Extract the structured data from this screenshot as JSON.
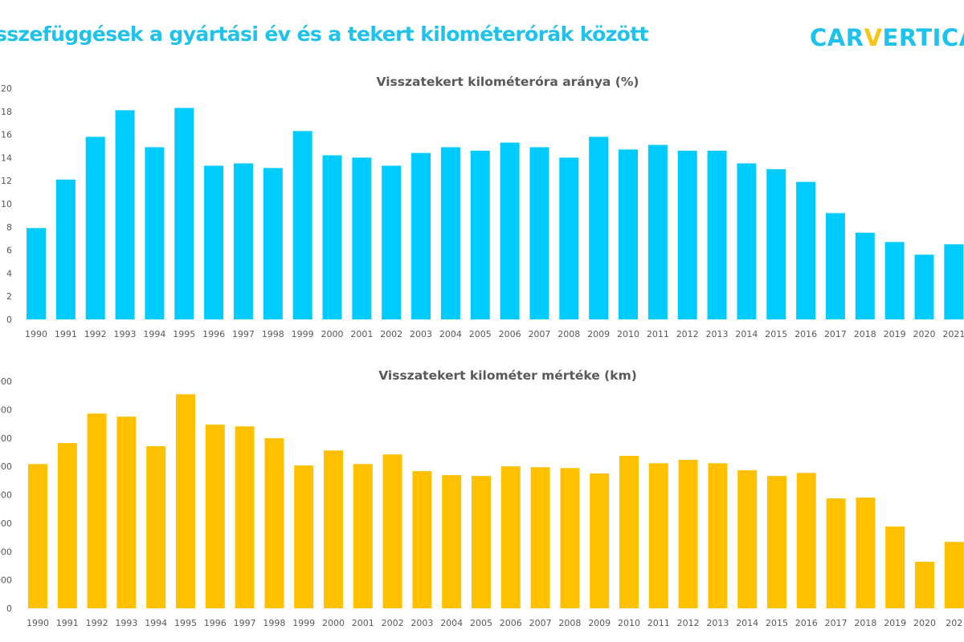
{
  "header": {
    "title": "sszefüggések a gyártási év és a tekert kilométerórák között",
    "logo_prefix": "CAR",
    "logo_v": "V",
    "logo_suffix": "ERTICA"
  },
  "colors": {
    "title": "#1fc2ea",
    "top_bars": "#00cbff",
    "bottom_bars": "#ffc000",
    "logo_accent": "#f5c518",
    "axis_text": "#595959"
  },
  "chart_data": [
    {
      "type": "bar",
      "title": "Visszatekert kilométeróra aránya (%)",
      "xlabel": "",
      "ylabel": "",
      "ylim": [
        0,
        20
      ],
      "yticks": [
        0,
        2,
        4,
        6,
        8,
        10,
        12,
        14,
        16,
        18,
        20
      ],
      "ytick_labels": [
        "0",
        "2",
        "4",
        "6",
        "8",
        "10",
        "12",
        "14",
        "16",
        "18",
        "20"
      ],
      "grid": false,
      "categories": [
        "1990",
        "1991",
        "1992",
        "1993",
        "1994",
        "1995",
        "1996",
        "1997",
        "1998",
        "1999",
        "2000",
        "2001",
        "2002",
        "2003",
        "2004",
        "2005",
        "2006",
        "2007",
        "2008",
        "2009",
        "2010",
        "2011",
        "2012",
        "2013",
        "2014",
        "2015",
        "2016",
        "2017",
        "2018",
        "2019",
        "2020",
        "2021"
      ],
      "values": [
        7.9,
        12.1,
        15.8,
        18.1,
        14.9,
        18.3,
        13.3,
        13.5,
        13.1,
        16.3,
        14.2,
        14.0,
        13.3,
        14.4,
        14.9,
        14.6,
        15.3,
        14.9,
        14.0,
        15.8,
        14.7,
        15.1,
        14.6,
        14.6,
        13.5,
        13.0,
        11.9,
        9.2,
        7.5,
        6.7,
        5.6,
        6.5
      ]
    },
    {
      "type": "bar",
      "title": "Visszatekert kilométer mértéke (km)",
      "xlabel": "",
      "ylabel": "",
      "ylim": [
        0,
        8
      ],
      "yticks": [
        0,
        1,
        2,
        3,
        4,
        5,
        6,
        7,
        8
      ],
      "ytick_labels": [
        "0",
        "000",
        "000",
        "000",
        "000",
        "000",
        "000",
        "000",
        "000"
      ],
      "grid": false,
      "categories": [
        "1990",
        "1991",
        "1992",
        "1993",
        "1994",
        "1995",
        "1996",
        "1997",
        "1998",
        "1999",
        "2000",
        "2001",
        "2002",
        "2003",
        "2004",
        "2005",
        "2006",
        "2007",
        "2008",
        "2009",
        "2010",
        "2011",
        "2012",
        "2013",
        "2014",
        "2015",
        "2016",
        "2017",
        "2018",
        "2019",
        "2020",
        "202"
      ],
      "values": [
        5.08,
        5.82,
        6.86,
        6.75,
        5.71,
        7.54,
        6.47,
        6.41,
        5.99,
        5.03,
        5.56,
        5.08,
        5.42,
        4.83,
        4.69,
        4.66,
        5.0,
        4.97,
        4.94,
        4.75,
        5.37,
        5.11,
        5.23,
        5.11,
        4.86,
        4.66,
        4.77,
        3.87,
        3.9,
        2.88,
        1.64,
        2.34
      ]
    }
  ]
}
